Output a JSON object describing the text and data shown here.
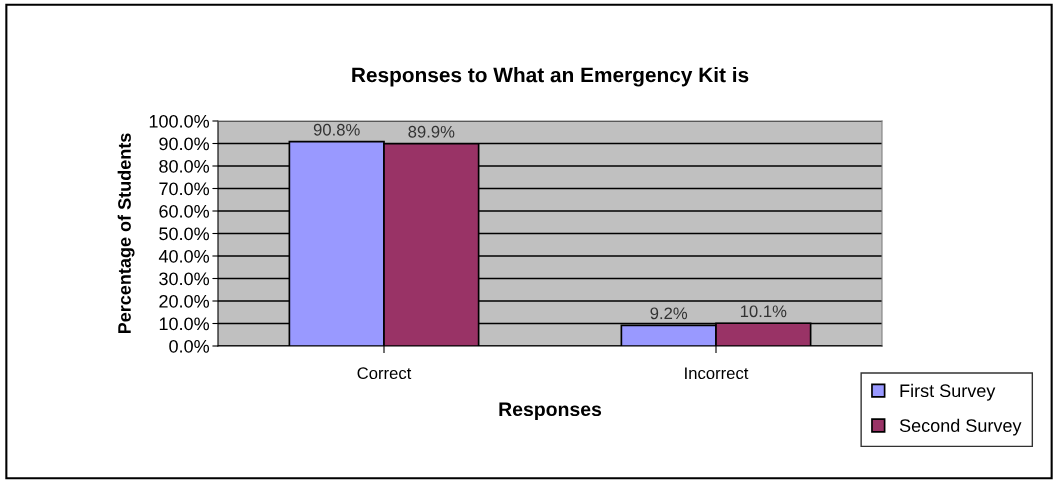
{
  "chart_data": {
    "type": "bar",
    "title": "Responses to What an Emergency Kit is",
    "xlabel": "Responses",
    "ylabel": "Percentage of Students",
    "categories": [
      "Correct",
      "Incorrect"
    ],
    "series": [
      {
        "name": "First Survey",
        "color": "#9999ff",
        "values": [
          90.8,
          9.2
        ],
        "value_labels": [
          "90.8%",
          "9.2%"
        ]
      },
      {
        "name": "Second Survey",
        "color": "#993366",
        "values": [
          89.9,
          10.1
        ],
        "value_labels": [
          "89.9%",
          "10.1%"
        ]
      }
    ],
    "ylim": [
      0,
      100
    ],
    "yticks": [
      {
        "value": 0,
        "label": "0.0%"
      },
      {
        "value": 10,
        "label": "10.0%"
      },
      {
        "value": 20,
        "label": "20.0%"
      },
      {
        "value": 30,
        "label": "30.0%"
      },
      {
        "value": 40,
        "label": "40.0%"
      },
      {
        "value": 50,
        "label": "50.0%"
      },
      {
        "value": 60,
        "label": "60.0%"
      },
      {
        "value": 70,
        "label": "70.0%"
      },
      {
        "value": 80,
        "label": "80.0%"
      },
      {
        "value": 90,
        "label": "90.0%"
      },
      {
        "value": 100,
        "label": "100.0%"
      }
    ],
    "grid": "y",
    "legend": "bottom right"
  }
}
